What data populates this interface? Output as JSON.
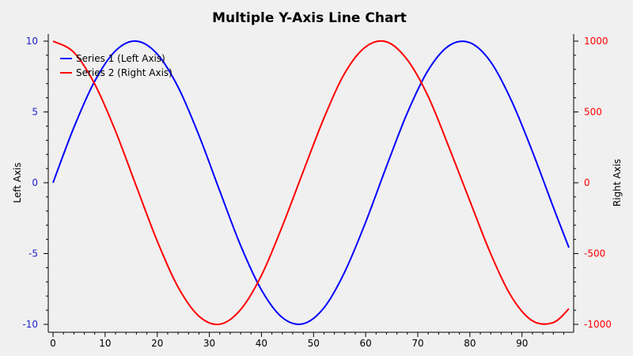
{
  "chart_data": {
    "type": "line",
    "title": "Multiple Y-Axis Line Chart",
    "xlabel": "",
    "y_left_label": "Left Axis",
    "y_right_label": "Right Axis",
    "xlim": [
      0,
      99
    ],
    "ylim_left": [
      -10,
      10
    ],
    "ylim_right": [
      -1000,
      1000
    ],
    "x_ticks": [
      0,
      10,
      20,
      30,
      40,
      50,
      60,
      70,
      80,
      90
    ],
    "x_tick_labels": [
      "0",
      "10",
      "20",
      "30",
      "40",
      "50",
      "60",
      "70",
      "80",
      "90"
    ],
    "y_left_ticks": [
      10,
      5,
      0,
      -5,
      -10
    ],
    "y_left_tick_labels": [
      "10",
      "5",
      "0",
      "-5",
      "-10"
    ],
    "y_right_ticks": [
      1000,
      500,
      0,
      -500,
      -1000
    ],
    "y_right_tick_labels": [
      "1000",
      "500",
      "0",
      "-500",
      "-1000"
    ],
    "grid": false,
    "legend_position": "top-left",
    "colors": {
      "left_axis": "#1f1fcc",
      "right_axis": "#ff0000"
    },
    "series": [
      {
        "name": "Series 1 (Left Axis)",
        "axis": "left",
        "color": "#0000ff",
        "x": [
          0,
          4,
          8,
          12,
          16,
          20,
          24,
          28,
          32,
          36,
          40,
          44,
          48,
          52,
          56,
          60,
          64,
          68,
          72,
          76,
          80,
          84,
          88,
          92,
          96,
          99
        ],
        "values": [
          0,
          3.9,
          7.17,
          9.32,
          10.0,
          9.09,
          6.76,
          3.35,
          -0.58,
          -4.43,
          -7.57,
          -9.52,
          -9.96,
          -8.83,
          -6.28,
          -2.78,
          1.16,
          4.94,
          7.95,
          9.68,
          9.89,
          8.53,
          5.78,
          2.2,
          -1.72,
          -4.58
        ]
      },
      {
        "name": "Series 2 (Right Axis)",
        "axis": "right",
        "color": "#ff0000",
        "x": [
          0,
          4,
          8,
          12,
          16,
          20,
          24,
          28,
          32,
          36,
          40,
          44,
          48,
          52,
          56,
          60,
          64,
          68,
          72,
          76,
          80,
          84,
          88,
          92,
          96,
          99
        ],
        "values": [
          1000,
          921,
          697,
          364,
          -26,
          -412,
          -737,
          -942,
          -999,
          -896,
          -654,
          -307,
          78,
          457,
          775,
          960,
          995,
          868,
          609,
          249,
          -129,
          -502,
          -806,
          -975,
          -987,
          -890
        ]
      }
    ]
  }
}
